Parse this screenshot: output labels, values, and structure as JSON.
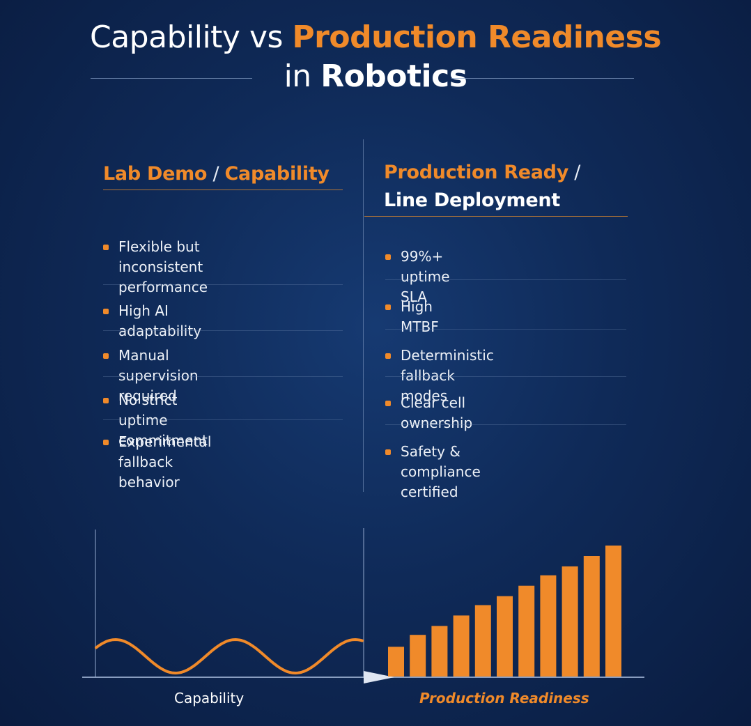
{
  "title": {
    "part1": "Capability vs ",
    "part2": "Production Readiness",
    "part3": "in ",
    "part4": "Robotics"
  },
  "left_column": {
    "heading_a": "Lab Demo",
    "heading_slash": " / ",
    "heading_b": "Capability",
    "items": [
      {
        "line1": "Flexible but inconsistent",
        "line2": "performance"
      },
      {
        "line1": "High AI adaptability",
        "line2": ""
      },
      {
        "line1": "Manual supervision required",
        "line2": ""
      },
      {
        "line1": "No strict uptime commitment",
        "line2": ""
      },
      {
        "line1": "Experimental fallback behavior",
        "line2": ""
      }
    ]
  },
  "right_column": {
    "heading_a": "Production Ready",
    "heading_slash": " /",
    "heading_b": "Line Deployment",
    "items": [
      {
        "line1": "99%+ uptime SLA"
      },
      {
        "line1": "High MTBF"
      },
      {
        "line1": "Deterministic fallback modes"
      },
      {
        "line1": "Clear cell ownership"
      },
      {
        "line1": "Safety & compliance certified"
      }
    ]
  },
  "chart": {
    "left_label": "Capability",
    "right_label": "Production Readiness",
    "bar_values": [
      1,
      1.4,
      1.7,
      2.05,
      2.4,
      2.7,
      3.05,
      3.4,
      3.7,
      4.05,
      4.4
    ],
    "accent_color": "#f08a2a"
  }
}
